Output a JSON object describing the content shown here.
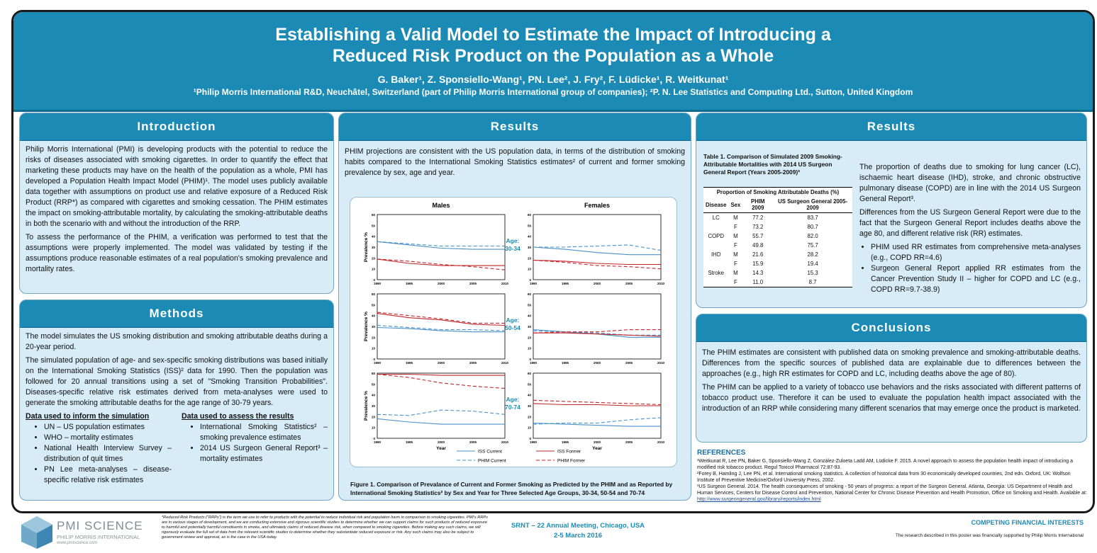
{
  "header": {
    "title_line1": "Establishing a Valid Model to Estimate the Impact of Introducing a",
    "title_line2": "Reduced Risk Product on the Population as a Whole",
    "authors": "G. Baker¹, Z. Sponsiello-Wang¹, PN. Lee², J. Fry², F. Lüdicke¹, R. Weitkunat¹",
    "affiliations": "¹Philip Morris International R&D, Neuchâtel, Switzerland (part of Philip Morris International group of companies); ²P. N. Lee Statistics and Computing Ltd., Sutton, United Kingdom"
  },
  "introduction": {
    "heading": "Introduction",
    "p1": "Philip Morris International (PMI) is developing products with the potential to reduce the risks of diseases associated with smoking cigarettes. In order to quantify the effect that marketing these products may have on the health of the population as a whole, PMI has developed a Population Health Impact Model (PHIM)¹. The model uses publicly available data together with assumptions on product use and relative exposure of a Reduced Risk Product (RRP*) as compared with cigarettes and smoking cessation. The PHIM estimates the impact on smoking-attributable mortality, by calculating the smoking-attributable deaths in both the scenario with and without the introduction of the RRP.",
    "p2": "To assess the performance of the PHIM, a verification was performed to test that the assumptions were properly implemented. The model was validated by testing if the assumptions produce reasonable estimates of a real population's smoking prevalence and mortality rates."
  },
  "methods": {
    "heading": "Methods",
    "p1": "The model simulates the US smoking distribution and smoking attributable deaths during a 20-year period.",
    "p2": "The simulated population of age- and sex-specific smoking distributions was based initially on the International Smoking Statistics (ISS)² data for 1990. Then the population was followed for 20 annual transitions using a set of \"Smoking Transition Probabilities\". Diseases-specific relative risk estimates derived from meta-analyses were used to generate the smoking attributable deaths for the age range of 30-79 years.",
    "col1_heading": "Data used to inform the simulation",
    "col1_items": [
      "UN – US population estimates",
      "WHO – mortality estimates",
      "National Health Interview Survey – distribution of quit times",
      "PN Lee meta-analyses – disease-specific relative risk estimates"
    ],
    "col2_heading": "Data used to assess the results",
    "col2_items": [
      "International Smoking Statistics² – smoking prevalence estimates",
      "2014 US Surgeon General Report³ – mortality estimates"
    ]
  },
  "results_mid": {
    "heading": "Results",
    "text": "PHIM projections are consistent with the US population data, in terms of the distribution of smoking habits compared to the International Smoking Statistics estimates² of current and former smoking prevalence by sex, age and year.",
    "caption": "Figure 1. Comparison of Prevalance of Current and Former Smoking as Predicted by the PHIM and as Reported by International Smoking Statistics² by Sex and Year for Three Selected Age Groups, 30-34, 50-54 and 70-74"
  },
  "chart_data": {
    "type": "line",
    "columns": [
      "Males",
      "Females"
    ],
    "rows": [
      "Age:\n30-34",
      "Age:\n50-54",
      "Age:\n70-74"
    ],
    "x": [
      1990,
      1995,
      2000,
      2005,
      2010
    ],
    "xticks": [
      "1990",
      "1995",
      "2000",
      "2005",
      "2010"
    ],
    "xlabel": "Year",
    "ylabel": "Prevalence %",
    "ylim": [
      0,
      60
    ],
    "yticks": [
      "0",
      "10",
      "20",
      "30",
      "40",
      "50",
      "60"
    ],
    "legend": [
      "ISS Current",
      "ISS Former",
      "PHIM Current",
      "PHIM Former"
    ],
    "colors": {
      "current": "#4a90c8",
      "former": "#c0252b"
    },
    "panels": [
      {
        "iss_current": [
          35,
          32,
          29,
          28,
          28
        ],
        "phim_current": [
          35,
          33,
          31,
          31,
          31
        ],
        "iss_former": [
          19,
          15,
          13,
          13,
          13
        ],
        "phim_former": [
          19,
          17,
          14,
          12,
          9
        ]
      },
      {
        "iss_current": [
          30,
          28,
          25,
          23,
          23
        ],
        "phim_current": [
          30,
          30,
          31,
          32,
          27
        ],
        "iss_former": [
          18,
          17,
          15,
          14,
          14
        ],
        "phim_former": [
          18,
          16,
          13,
          12,
          10
        ]
      },
      {
        "iss_current": [
          29,
          28,
          26,
          25,
          25
        ],
        "phim_current": [
          31,
          29,
          27,
          27,
          26
        ],
        "iss_former": [
          42,
          38,
          36,
          32,
          31
        ],
        "phim_former": [
          43,
          40,
          37,
          33,
          33
        ]
      },
      {
        "iss_current": [
          27,
          25,
          23,
          20,
          20
        ],
        "phim_current": [
          26,
          25,
          24,
          22,
          22
        ],
        "iss_former": [
          24,
          24,
          23,
          22,
          21
        ],
        "phim_former": [
          24,
          25,
          25,
          27,
          27
        ]
      },
      {
        "iss_current": [
          18,
          15,
          13,
          13,
          13
        ],
        "phim_current": [
          22,
          21,
          26,
          25,
          22
        ],
        "iss_former": [
          59,
          59,
          58,
          58,
          58
        ],
        "phim_former": [
          59,
          56,
          51,
          48,
          46
        ]
      },
      {
        "iss_current": [
          14,
          13,
          12,
          11,
          11
        ],
        "phim_current": [
          13,
          14,
          14,
          17,
          19
        ],
        "iss_former": [
          32,
          31,
          31,
          30,
          30
        ],
        "phim_former": [
          35,
          34,
          33,
          32,
          31
        ]
      }
    ]
  },
  "results_right": {
    "heading": "Results",
    "table_title": "Table 1.  Comparison of Simulated 2009 Smoking-Attributable Mortalities with 2014 US Surgeon General Report (Years 2005-2009)³",
    "table_super": "Proportion of Smoking Attributable Deaths (%)",
    "table_headers": [
      "Disease",
      "Sex",
      "PHIM 2009",
      "US Surgeon General 2005-2009"
    ],
    "table_rows": [
      [
        "LC",
        "M",
        "77.2",
        "83.7"
      ],
      [
        "",
        "F",
        "73.2",
        "80.7"
      ],
      [
        "COPD",
        "M",
        "55.7",
        "82.0"
      ],
      [
        "",
        "F",
        "49.8",
        "75.7"
      ],
      [
        "IHD",
        "M",
        "21.6",
        "28.2"
      ],
      [
        "",
        "F",
        "15.9",
        "19.4"
      ],
      [
        "Stroke",
        "M",
        "14.3",
        "15.3"
      ],
      [
        "",
        "F",
        "11.0",
        "8.7"
      ]
    ],
    "p1": "The proportion of deaths due to smoking  for lung cancer (LC), ischaemic heart disease (IHD), stroke, and chronic obstructive pulmonary disease (COPD) are in line with the 2014 US Surgeon General Report³.",
    "p2": "Differences from the US Surgeon General Report were due to the fact that the Surgeon General Report includes deaths above the age 80, and different relative risk (RR) estimates.",
    "bullets": [
      "PHIM used RR estimates from comprehensive meta-analyses (e.g., COPD RR=4.6)",
      "Surgeon General Report applied RR estimates from the Cancer Prevention Study II – higher for COPD and LC (e.g., COPD RR=9.7-38.9)"
    ]
  },
  "conclusions": {
    "heading": "Conclusions",
    "p1": "The PHIM estimates are consistent with published data on smoking prevalence and smoking-attributable deaths. Differences from the specific sources of published data are explainable due to differences between the approaches (e.g., high RR estimates for COPD and LC, including deaths above the age of 80).",
    "p2": "The PHIM can be applied to a variety of tobacco use behaviors and the risks associated with different patterns of tobacco product use. Therefore it can be used to evaluate the population health impact associated with the introduction of an RRP while considering many different scenarios that may emerge once the product is marketed."
  },
  "references": {
    "heading": "REFERENCES",
    "r1": "¹Weitkunat R, Lee PN, Baker G, Sponsiello-Wang Z, González-Zuloeta Ladd AM, Lüdicke F. 2015. A novel approach to assess the population health impact of introducing a modified risk tobacco product.  Regul Toxicol Pharmacol 72:87-93.",
    "r2": "²Forey B, Hamling J, Lee PN, et al. International smoking statistics. A collection of historical data from 30 economically developed countries, 2nd edn. Oxford, UK: Wolfson Institute of Preventive Medicine/Oxford University Press, 2002.",
    "r3": "³US Surgeon General. 2014. The health consequences of smoking - 50 years of progress: a report of the Surgeon General. Atlanta, Georgia: US Department of Health and Human Services, Centers for Disease Control and Prevention, National Center for Chronic Disease Prevention and Health Promotion, Office on Smoking and Health. Available at:",
    "r3_link": "http://www.surgeongeneral.gov/library/reports/index.html"
  },
  "footer": {
    "logo_name": "PMI SCIENCE",
    "logo_sub": "PHILIP MORRIS INTERNATIONAL",
    "logo_url": "www.pmiscience.com",
    "disclaimer": "*Reduced Risk Products (\"RRPs\") is the term we use to refer to products with the potential to reduce individual risk and population harm in comparison to smoking cigarettes. PMI's RRPs are in various stages of development, and we are conducting extensive and rigorous scientific studies to determine whether we can support claims for such products of reduced exposure to harmful and potentially harmful constituents in smoke, and ultimately claims of reduced disease risk, when compared to smoking cigarettes. Before making any such claims, we will rigorously evaluate the full set of data from the relevant scientific studies to determine whether they substantiate reduced exposure or risk. Any such claims may also be subject to government review and approval, as is the case in the USA today.",
    "meeting": "SRNT – 22 Annual Meeting, Chicago, USA",
    "dates": "2-5 March 2016",
    "cfi_heading": "COMPETING FINANCIAL INTERESTS",
    "cfi_text": "The research described in this poster was financially supported by Philip Morris International"
  }
}
